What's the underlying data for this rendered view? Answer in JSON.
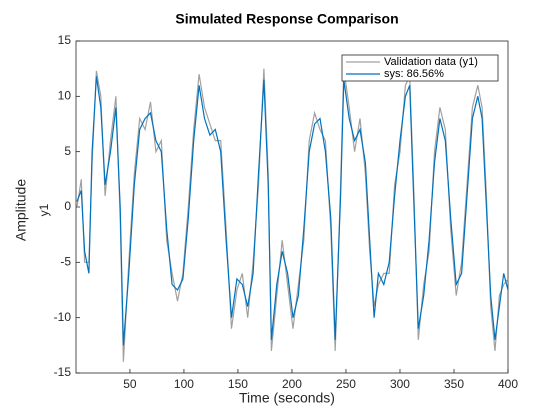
{
  "chart_data": {
    "type": "line",
    "title": "Simulated Response Comparison",
    "xlabel": "Time (seconds)",
    "ylabel": "Amplitude",
    "ylabel2": "y1",
    "x": [
      1,
      5,
      8,
      12,
      15,
      19,
      23,
      27,
      32,
      37,
      41,
      44,
      49,
      54,
      59,
      64,
      69,
      74,
      79,
      84,
      89,
      94,
      99,
      104,
      109,
      114,
      119,
      124,
      129,
      134,
      139,
      144,
      149,
      154,
      159,
      164,
      169,
      174,
      178,
      181,
      186,
      191,
      196,
      201,
      206,
      211,
      216,
      221,
      226,
      231,
      236,
      240,
      245,
      248,
      253,
      258,
      263,
      268,
      272,
      276,
      280,
      285,
      290,
      295,
      300,
      305,
      309,
      313,
      317,
      322,
      327,
      332,
      337,
      342,
      347,
      352,
      357,
      362,
      367,
      372,
      376,
      380,
      384,
      388,
      392,
      396,
      400
    ],
    "series": [
      {
        "name": "Validation data (y1)",
        "color": "#a0a0a0",
        "values": [
          0,
          2.5,
          -5,
          -5,
          4,
          12.3,
          10,
          1,
          6,
          10,
          -1,
          -14,
          -5,
          3,
          8,
          7,
          9.5,
          5,
          6,
          -3,
          -6,
          -8.5,
          -6,
          0,
          7,
          12,
          9,
          7.5,
          6,
          6,
          -2,
          -11,
          -7.5,
          -6,
          -10,
          -5,
          2,
          12.5,
          3,
          -13,
          -8,
          -3,
          -7,
          -11,
          -7,
          -3,
          6,
          8.5,
          7,
          6,
          -2,
          -13,
          2,
          12.5,
          9,
          5,
          8,
          3,
          -4,
          -9,
          -7,
          -6,
          -6,
          2,
          5,
          11,
          11.8,
          1,
          -12,
          -7,
          -4,
          5,
          9,
          7,
          -2,
          -8,
          -5,
          2,
          9,
          11,
          9,
          1,
          -9,
          -13,
          -8,
          -7,
          -6.5
        ]
      },
      {
        "name": "sys: 86.56%",
        "color": "#0072bd",
        "values": [
          0.5,
          1.5,
          -4,
          -6,
          5,
          11.8,
          9,
          2,
          5,
          9,
          0,
          -12.5,
          -6,
          2,
          7,
          8,
          8.5,
          6,
          5,
          -2,
          -7,
          -7.5,
          -6.5,
          -1,
          6,
          11,
          8,
          6.5,
          7,
          5,
          -3,
          -10,
          -6.5,
          -7,
          -9,
          -6,
          3,
          11.5,
          2,
          -12,
          -7,
          -4,
          -6,
          -10,
          -8,
          -2,
          5,
          7.5,
          8,
          5,
          -1,
          -12,
          1,
          11.5,
          8,
          6,
          7,
          4,
          -3,
          -10,
          -6,
          -7,
          -5,
          1,
          6,
          10,
          11,
          0,
          -11,
          -8,
          -3,
          4,
          8,
          6,
          -1,
          -7,
          -6,
          1,
          8,
          10,
          8,
          0,
          -8,
          -12,
          -9,
          -6,
          -7.5
        ]
      }
    ],
    "xlim": [
      1,
      400
    ],
    "ylim": [
      -15,
      15
    ],
    "xticks": [
      50,
      100,
      150,
      200,
      250,
      300,
      350,
      400
    ],
    "yticks": [
      -15,
      -10,
      -5,
      0,
      5,
      10,
      15
    ],
    "grid": false,
    "legend": "northeast"
  }
}
